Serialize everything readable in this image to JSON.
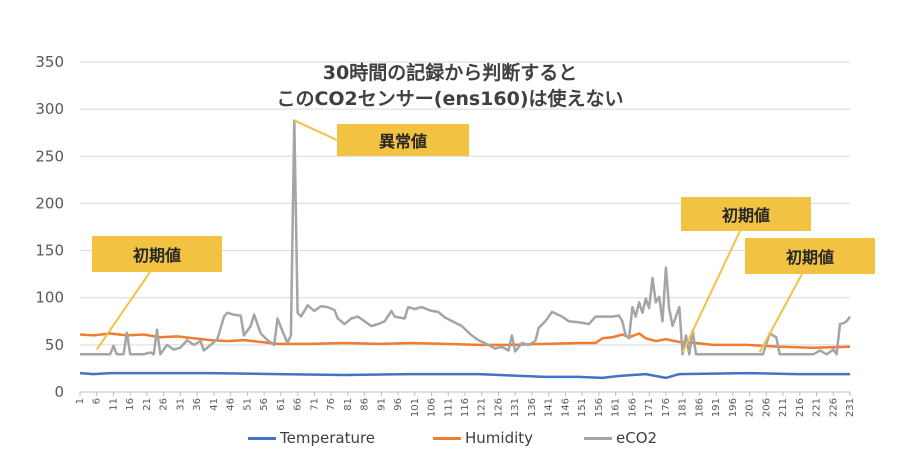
{
  "chart_data": {
    "type": "line",
    "title": [
      "30時間の記録から判断すると",
      "このCO2センサー(ens160)は使えない"
    ],
    "xlabel": "",
    "ylabel": "",
    "ylim": [
      0,
      350
    ],
    "yticks": [
      "0",
      "50",
      "100",
      "150",
      "200",
      "250",
      "300",
      "350"
    ],
    "xlim": [
      1,
      231
    ],
    "x_tick_start": 1,
    "x_tick_step": 5,
    "grid": "horizontal",
    "legend_position": "bottom",
    "series": [
      {
        "name": "Temperature",
        "color": "#4472c4",
        "points": [
          [
            1,
            20
          ],
          [
            5,
            19
          ],
          [
            10,
            20
          ],
          [
            20,
            20
          ],
          [
            40,
            20
          ],
          [
            60,
            19
          ],
          [
            80,
            18
          ],
          [
            100,
            19
          ],
          [
            120,
            19
          ],
          [
            140,
            16
          ],
          [
            150,
            16
          ],
          [
            157,
            15
          ],
          [
            162,
            17
          ],
          [
            170,
            19
          ],
          [
            176,
            15
          ],
          [
            180,
            19
          ],
          [
            200,
            20
          ],
          [
            215,
            19
          ],
          [
            231,
            19
          ]
        ]
      },
      {
        "name": "Humidity",
        "color": "#ed7d31",
        "points": [
          [
            1,
            61
          ],
          [
            5,
            60
          ],
          [
            10,
            62
          ],
          [
            15,
            60
          ],
          [
            20,
            61
          ],
          [
            25,
            58
          ],
          [
            30,
            59
          ],
          [
            35,
            57
          ],
          [
            40,
            55
          ],
          [
            45,
            54
          ],
          [
            50,
            55
          ],
          [
            55,
            53
          ],
          [
            60,
            51
          ],
          [
            70,
            51
          ],
          [
            80,
            52
          ],
          [
            90,
            51
          ],
          [
            100,
            52
          ],
          [
            110,
            51
          ],
          [
            120,
            50
          ],
          [
            130,
            50
          ],
          [
            140,
            51
          ],
          [
            150,
            52
          ],
          [
            155,
            52
          ],
          [
            157,
            57
          ],
          [
            160,
            58
          ],
          [
            163,
            61
          ],
          [
            165,
            58
          ],
          [
            168,
            62
          ],
          [
            170,
            57
          ],
          [
            173,
            54
          ],
          [
            176,
            56
          ],
          [
            180,
            53
          ],
          [
            185,
            52
          ],
          [
            190,
            50
          ],
          [
            200,
            50
          ],
          [
            210,
            48
          ],
          [
            220,
            47
          ],
          [
            231,
            48
          ]
        ]
      },
      {
        "name": "eCO2",
        "color": "#a5a5a5",
        "points": [
          [
            1,
            40
          ],
          [
            5,
            40
          ],
          [
            10,
            40
          ],
          [
            11,
            49
          ],
          [
            12,
            40
          ],
          [
            14,
            40
          ],
          [
            15,
            63
          ],
          [
            16,
            40
          ],
          [
            20,
            40
          ],
          [
            22,
            42
          ],
          [
            23,
            40
          ],
          [
            24,
            66
          ],
          [
            25,
            40
          ],
          [
            27,
            50
          ],
          [
            29,
            45
          ],
          [
            31,
            47
          ],
          [
            33,
            55
          ],
          [
            35,
            50
          ],
          [
            37,
            54
          ],
          [
            38,
            44
          ],
          [
            40,
            50
          ],
          [
            42,
            56
          ],
          [
            44,
            80
          ],
          [
            45,
            84
          ],
          [
            47,
            82
          ],
          [
            49,
            81
          ],
          [
            50,
            60
          ],
          [
            52,
            70
          ],
          [
            53,
            82
          ],
          [
            55,
            62
          ],
          [
            57,
            55
          ],
          [
            59,
            50
          ],
          [
            60,
            78
          ],
          [
            62,
            60
          ],
          [
            63,
            52
          ],
          [
            64,
            60
          ],
          [
            65,
            288
          ],
          [
            66,
            84
          ],
          [
            67,
            80
          ],
          [
            69,
            92
          ],
          [
            71,
            86
          ],
          [
            73,
            91
          ],
          [
            75,
            90
          ],
          [
            77,
            87
          ],
          [
            78,
            78
          ],
          [
            80,
            72
          ],
          [
            82,
            78
          ],
          [
            84,
            80
          ],
          [
            86,
            75
          ],
          [
            88,
            70
          ],
          [
            90,
            72
          ],
          [
            92,
            75
          ],
          [
            94,
            86
          ],
          [
            95,
            80
          ],
          [
            98,
            78
          ],
          [
            99,
            90
          ],
          [
            101,
            88
          ],
          [
            103,
            90
          ],
          [
            106,
            86
          ],
          [
            108,
            85
          ],
          [
            110,
            79
          ],
          [
            115,
            70
          ],
          [
            118,
            60
          ],
          [
            120,
            55
          ],
          [
            123,
            50
          ],
          [
            125,
            46
          ],
          [
            127,
            48
          ],
          [
            129,
            44
          ],
          [
            130,
            60
          ],
          [
            131,
            43
          ],
          [
            133,
            52
          ],
          [
            135,
            50
          ],
          [
            137,
            54
          ],
          [
            138,
            68
          ],
          [
            140,
            75
          ],
          [
            142,
            85
          ],
          [
            145,
            80
          ],
          [
            147,
            75
          ],
          [
            150,
            74
          ],
          [
            153,
            72
          ],
          [
            155,
            80
          ],
          [
            158,
            80
          ],
          [
            160,
            80
          ],
          [
            162,
            81
          ],
          [
            163,
            75
          ],
          [
            164,
            60
          ],
          [
            165,
            57
          ],
          [
            166,
            90
          ],
          [
            167,
            80
          ],
          [
            168,
            95
          ],
          [
            169,
            84
          ],
          [
            170,
            99
          ],
          [
            171,
            89
          ],
          [
            172,
            121
          ],
          [
            173,
            95
          ],
          [
            174,
            101
          ],
          [
            175,
            75
          ],
          [
            176,
            132
          ],
          [
            177,
            88
          ],
          [
            178,
            70
          ],
          [
            179,
            80
          ],
          [
            180,
            90
          ],
          [
            181,
            40
          ],
          [
            182,
            60
          ],
          [
            183,
            40
          ],
          [
            184,
            65
          ],
          [
            185,
            40
          ],
          [
            190,
            40
          ],
          [
            200,
            40
          ],
          [
            205,
            40
          ],
          [
            207,
            62
          ],
          [
            209,
            58
          ],
          [
            210,
            40
          ],
          [
            220,
            40
          ],
          [
            222,
            44
          ],
          [
            224,
            40
          ],
          [
            226,
            45
          ],
          [
            227,
            40
          ],
          [
            228,
            72
          ],
          [
            229,
            73
          ],
          [
            230,
            75
          ],
          [
            231,
            80
          ]
        ]
      }
    ],
    "annotations": [
      {
        "text": "異常値"
      },
      {
        "text": "初期値"
      },
      {
        "text": "初期値"
      },
      {
        "text": "初期値"
      }
    ]
  }
}
